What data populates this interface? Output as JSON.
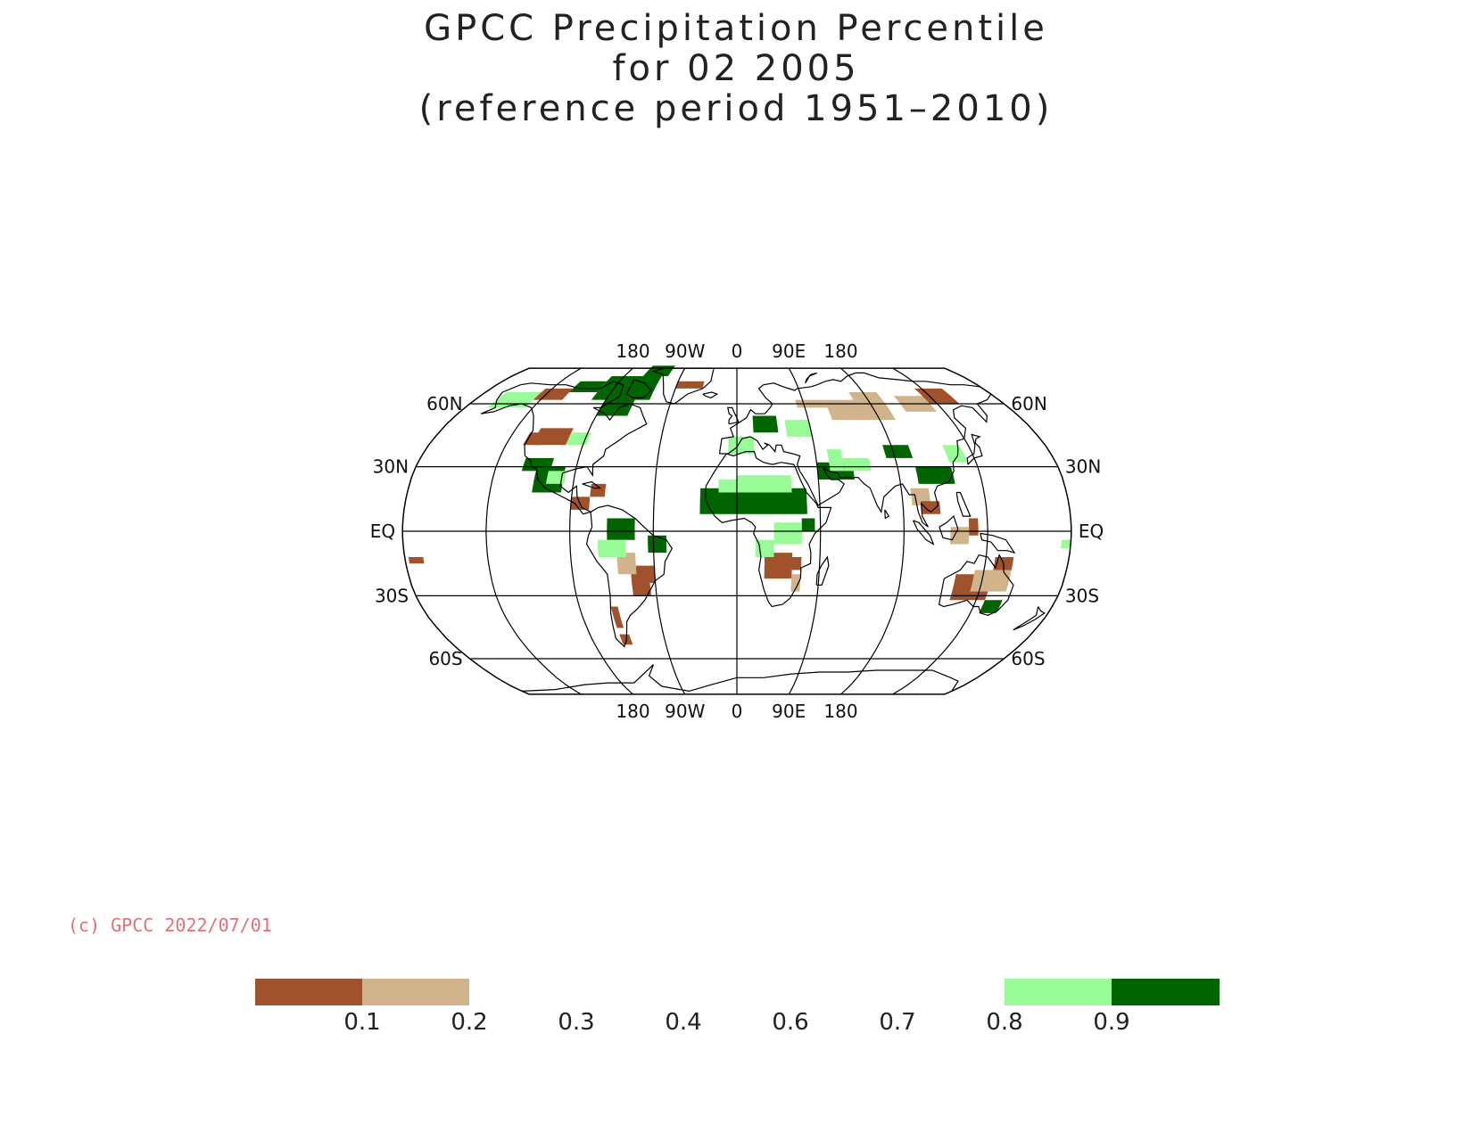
{
  "title": {
    "line1": "GPCC Precipitation Percentile",
    "line2": "for 02 2005",
    "line3": "(reference period 1951–2010)"
  },
  "map": {
    "projection": "Robinson",
    "center_longitude": 0,
    "lon_labels_top": [
      "180",
      "90W",
      "0",
      "90E",
      "180"
    ],
    "lon_labels_bottom": [
      "180",
      "90W",
      "0",
      "90E",
      "180"
    ],
    "lat_labels_left": [
      "60N",
      "30N",
      "EQ",
      "30S",
      "60S"
    ],
    "lat_labels_right": [
      "60N",
      "30N",
      "EQ",
      "30S",
      "60S"
    ],
    "colors": {
      "very_dry": "#a0522d",
      "dry": "#d2b48c",
      "wet": "#98fb98",
      "very_wet": "#006400",
      "coastline": "#000000",
      "grid": "#000000"
    },
    "anomaly_regions": [
      {
        "name": "Sahel",
        "class": "very_wet"
      },
      {
        "name": "Arabian Peninsula / Iran",
        "class": "very_wet"
      },
      {
        "name": "Mexico / SW USA",
        "class": "very_wet"
      },
      {
        "name": "Canadian Arctic",
        "class": "very_wet"
      },
      {
        "name": "South China",
        "class": "very_wet"
      },
      {
        "name": "Southern Brazil / Paraguay",
        "class": "very_dry"
      },
      {
        "name": "Southern Africa",
        "class": "very_dry"
      },
      {
        "name": "Australia",
        "class": "very_dry"
      },
      {
        "name": "Siberia",
        "class": "dry"
      },
      {
        "name": "Greenland",
        "class": "very_dry"
      }
    ]
  },
  "copyright": "(c) GPCC 2022/07/01",
  "legend": {
    "ticks": [
      "0.1",
      "0.2",
      "0.3",
      "0.4",
      "0.6",
      "0.7",
      "0.8",
      "0.9"
    ],
    "swatches": [
      {
        "name": "below-0.1",
        "color": "#a0522d"
      },
      {
        "name": "0.1-0.2",
        "color": "#d2b48c"
      },
      {
        "name": "0.8-0.9",
        "color": "#98fb98"
      },
      {
        "name": "above-0.9",
        "color": "#006400"
      }
    ]
  }
}
